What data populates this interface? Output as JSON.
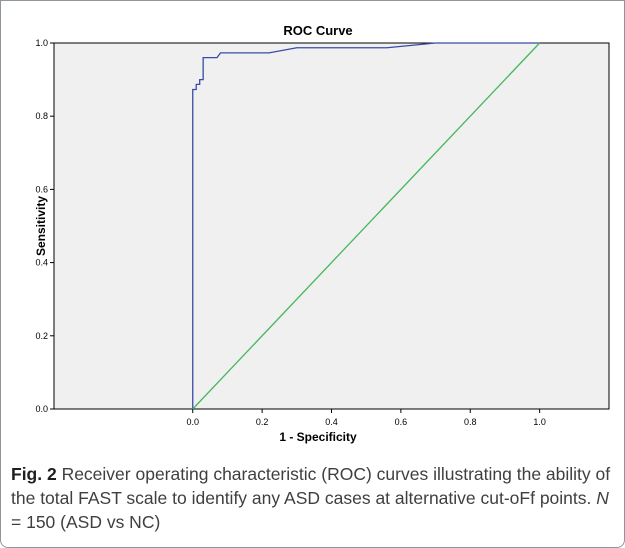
{
  "chart_data": {
    "type": "line",
    "title": "ROC Curve",
    "xlabel": "1 - Specificity",
    "ylabel": "Sensitivity",
    "xlim": [
      -0.4,
      1.2
    ],
    "ylim": [
      0,
      1
    ],
    "x_ticks": [
      "0.0",
      "0.2",
      "0.4",
      "0.6",
      "0.8",
      "1.0"
    ],
    "y_ticks": [
      "0.0",
      "0.2",
      "0.4",
      "0.6",
      "0.8",
      "1.0"
    ],
    "grid": false,
    "legend": "none",
    "plot_background": "#f0f0f0",
    "series": [
      {
        "color": "#3b4ba6",
        "x": [
          0.0,
          0.0,
          0.01,
          0.01,
          0.02,
          0.02,
          0.03,
          0.03,
          0.04,
          0.04,
          0.07,
          0.08,
          0.1,
          0.22,
          0.3,
          0.56,
          0.7,
          1.0
        ],
        "y": [
          0.0,
          0.873,
          0.873,
          0.887,
          0.887,
          0.9,
          0.9,
          0.96,
          0.96,
          0.96,
          0.96,
          0.973,
          0.973,
          0.973,
          0.987,
          0.987,
          1.0,
          1.0
        ]
      },
      {
        "color": "#45b85a",
        "x": [
          0.0,
          1.0
        ],
        "y": [
          0.0,
          1.0
        ]
      }
    ]
  },
  "caption": {
    "label": "Fig. 2",
    "text_1": " Receiver operating characteristic (ROC) curves illustrating the ability of the total FAST scale to identify any ASD cases at alternative cut-oFf points. ",
    "n_symbol": "N",
    "text_2": " = 150 (ASD vs NC)"
  }
}
